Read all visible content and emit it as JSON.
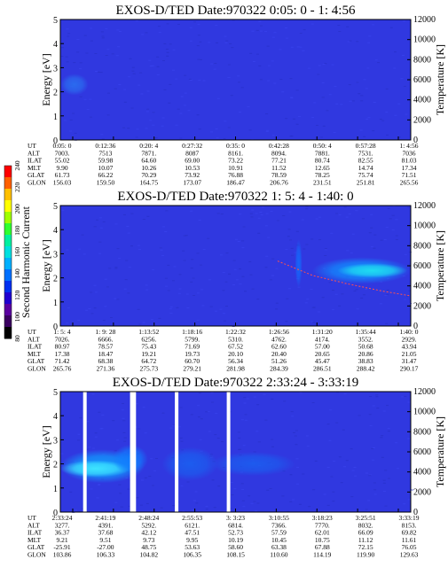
{
  "colorbar": {
    "label": "Second Harmonic Current",
    "ticks": [
      "240",
      "220",
      "200",
      "180",
      "160",
      "140",
      "120",
      "100",
      "80"
    ],
    "colors": [
      "#000000",
      "#3a0060",
      "#5a00a0",
      "#2000d0",
      "#0030f0",
      "#0070ff",
      "#00b0ff",
      "#00e0e0",
      "#00f0a0",
      "#30ff30",
      "#a0ff00",
      "#ffff00",
      "#ffc000",
      "#ff6000",
      "#ff0000"
    ]
  },
  "axes": {
    "ylabel": "Energy [eV]",
    "y2label": "Temperature [K]",
    "yticks": [
      "0",
      "1",
      "2",
      "3",
      "4",
      "5"
    ],
    "y2ticks": [
      "0",
      "2000",
      "4000",
      "6000",
      "8000",
      "10000",
      "12000"
    ]
  },
  "orbit_row_labels": [
    "UT",
    "ALT",
    "ILAT",
    "MLT",
    "GLAT",
    "GLON"
  ],
  "chart_data": [
    {
      "type": "heatmap",
      "title": "EXOS-D/TED   Date:970322  0:05: 0 - 1: 4:56",
      "ylabel": "Energy [eV]",
      "y2label": "Temperature [K]",
      "ylim": [
        0,
        5
      ],
      "y2lim": [
        0,
        12000
      ],
      "background": "#3038e0",
      "features": [
        {
          "kind": "blob",
          "x": 0.04,
          "y": 2.3,
          "rx": 0.04,
          "ry": 0.45,
          "color": "#2a70f0",
          "opacity": 0.9
        }
      ],
      "gaps": [],
      "orbit": {
        "UT": [
          "0:05: 0",
          "0:12:36",
          "0:20: 4",
          "0:27:32",
          "0:35: 0",
          "0:42:28",
          "0:50: 4",
          "0:57:28",
          "1: 4:56"
        ],
        "ALT": [
          "7003.",
          "7513",
          "7871.",
          "8087",
          "8161.",
          "8094.",
          "7881.",
          "7531.",
          "7036"
        ],
        "ILAT": [
          "55.02",
          "59.98",
          "64.60",
          "69.00",
          "73.22",
          "77.21",
          "80.74",
          "82.55",
          "81.03"
        ],
        "MLT": [
          "9.90",
          "10.07",
          "10.26",
          "10.53",
          "10.91",
          "11.52",
          "12.65",
          "14.74",
          "17.34"
        ],
        "GLAT": [
          "61.73",
          "66.22",
          "70.29",
          "73.92",
          "76.88",
          "78.59",
          "78.25",
          "75.74",
          "71.51"
        ],
        "GLON": [
          "156.03",
          "159.50",
          "164.75",
          "173.07",
          "186.47",
          "206.76",
          "231.51",
          "251.81",
          "265.56"
        ]
      }
    },
    {
      "type": "heatmap",
      "title": "EXOS-D/TED   Date:970322  1: 5: 4 - 1:40: 0",
      "ylabel": "Energy [eV]",
      "y2label": "Temperature [K]",
      "ylim": [
        0,
        5
      ],
      "y2lim": [
        0,
        12000
      ],
      "background": "#3038e0",
      "features": [
        {
          "kind": "band",
          "x": 0.86,
          "y": 2.3,
          "rx": 0.14,
          "ry": 0.55,
          "color": "#1090ff",
          "opacity": 0.95
        },
        {
          "kind": "band",
          "x": 0.89,
          "y": 2.3,
          "rx": 0.1,
          "ry": 0.3,
          "color": "#20e0f0",
          "opacity": 0.95
        },
        {
          "kind": "band",
          "x": 0.68,
          "y": 2.6,
          "rx": 0.01,
          "ry": 1.0,
          "color": "#1070ff",
          "opacity": 0.8
        }
      ],
      "temperature_trace": {
        "x": [
          0.62,
          0.72,
          0.82,
          0.92,
          1.0
        ],
        "y": [
          2.7,
          2.1,
          1.75,
          1.45,
          1.25
        ]
      },
      "gaps": [],
      "orbit": {
        "UT": [
          "1: 5: 4",
          "1: 9: 28",
          "1:13:52",
          "1:18:16",
          "1:22:32",
          "1:26:56",
          "1:31:20",
          "1:35:44",
          "1:40: 0"
        ],
        "ALT": [
          "7026.",
          "6666.",
          "6256.",
          "5799.",
          "5310.",
          "4762.",
          "4174.",
          "3552.",
          "2929."
        ],
        "ILAT": [
          "80.97",
          "78.57",
          "75.43",
          "71.69",
          "67.52",
          "62.60",
          "57.00",
          "50.68",
          "43.94"
        ],
        "MLT": [
          "17.38",
          "18.47",
          "19.21",
          "19.73",
          "20.10",
          "20.40",
          "20.65",
          "20.86",
          "21.05"
        ],
        "GLAT": [
          "71.42",
          "68.38",
          "64.72",
          "60.70",
          "56.34",
          "51.26",
          "45.47",
          "38.83",
          "31.47"
        ],
        "GLON": [
          "265.76",
          "271.36",
          "275.73",
          "279.21",
          "281.98",
          "284.39",
          "286.51",
          "288.42",
          "290.17"
        ]
      }
    },
    {
      "type": "heatmap",
      "title": "EXOS-D/TED   Date:970322  2:33:24 - 3:33:19",
      "ylabel": "Energy [eV]",
      "y2label": "Temperature [K]",
      "ylim": [
        0,
        5
      ],
      "y2lim": [
        0,
        12000
      ],
      "background": "#3038e0",
      "features": [
        {
          "kind": "band",
          "x": 0.12,
          "y": 1.9,
          "rx": 0.12,
          "ry": 0.7,
          "color": "#10a0ff",
          "opacity": 0.95
        },
        {
          "kind": "band",
          "x": 0.1,
          "y": 1.8,
          "rx": 0.1,
          "ry": 0.35,
          "color": "#40e8ff",
          "opacity": 0.95
        },
        {
          "kind": "band",
          "x": 0.2,
          "y": 2.2,
          "rx": 0.05,
          "ry": 0.6,
          "color": "#1080ff",
          "opacity": 0.9
        },
        {
          "kind": "band",
          "x": 0.37,
          "y": 2.0,
          "rx": 0.08,
          "ry": 0.7,
          "color": "#1a60f0",
          "opacity": 0.9
        },
        {
          "kind": "band",
          "x": 0.55,
          "y": 2.0,
          "rx": 0.12,
          "ry": 0.5,
          "color": "#1a60f0",
          "opacity": 0.85
        }
      ],
      "gaps": [
        0.07,
        0.204,
        0.211,
        0.332,
        0.48
      ],
      "orbit": {
        "UT": [
          "2:33:24",
          "2:41:19",
          "2:48:24",
          "2:55:53",
          "3: 3:23",
          "3:10:55",
          "3:18:23",
          "3:25:51",
          "3:33:19"
        ],
        "ALT": [
          "3277.",
          "4391.",
          "5292.",
          "6121.",
          "6814.",
          "7366.",
          "7770.",
          "8032.",
          "8153."
        ],
        "ILAT": [
          "36.37",
          "37.68",
          "42.12",
          "47.51",
          "52.73",
          "57.59",
          "62.01",
          "66.09",
          "69.82"
        ],
        "MLT": [
          "9.21",
          "9.51",
          "9.73",
          "9.95",
          "10.19",
          "10.45",
          "10.75",
          "11.12",
          "11.61"
        ],
        "GLAT": [
          "-25.91",
          "-27.00",
          "48.75",
          "53.63",
          "58.60",
          "63.38",
          "67.88",
          "72.15",
          "76.05"
        ],
        "GLON": [
          "103.86",
          "106.33",
          "104.82",
          "106.35",
          "108.15",
          "110.60",
          "114.19",
          "119.90",
          "129.63"
        ]
      }
    }
  ]
}
